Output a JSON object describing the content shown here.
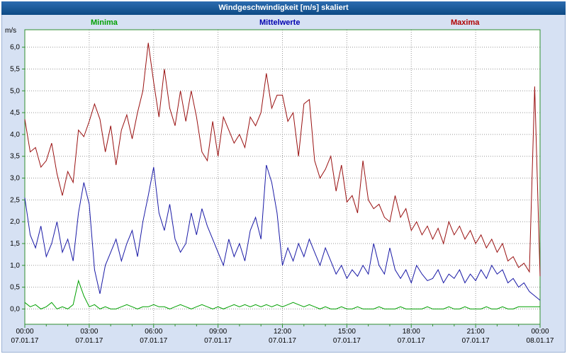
{
  "window": {
    "title": "Windgeschwindigkeit [m/s] skaliert"
  },
  "legend": [
    {
      "label": "Minima",
      "color": "#00a000"
    },
    {
      "label": "Mittelwerte",
      "color": "#0000b0"
    },
    {
      "label": "Maxima",
      "color": "#b00000"
    }
  ],
  "axis": {
    "y_unit": "m/s"
  },
  "colors": {
    "title_top": "#2c6cb0",
    "title_bottom": "#0d4a84",
    "background": "#d6e1f3",
    "plot_frame": "#2f8f2f",
    "grid": "#999999"
  },
  "chart_data": {
    "type": "line",
    "title": "Windgeschwindigkeit [m/s] skaliert",
    "ylabel": "m/s",
    "ylim": [
      -0.35,
      6.4
    ],
    "y_tick_step": 0.5,
    "grid": true,
    "x_start_hour": 0,
    "x_step_minutes": 15,
    "x_tick_hours": [
      0,
      3,
      6,
      9,
      12,
      15,
      18,
      21,
      24
    ],
    "x_tick_labels": [
      "00:00",
      "03:00",
      "06:00",
      "09:00",
      "12:00",
      "15:00",
      "18:00",
      "21:00",
      "00:00"
    ],
    "x_date_labels": [
      "07.01.17",
      "07.01.17",
      "07.01.17",
      "07.01.17",
      "07.01.17",
      "07.01.17",
      "07.01.17",
      "07.01.17",
      "08.01.17"
    ],
    "y_tick_labels": [
      "0,0",
      "0,5",
      "1,0",
      "1,5",
      "2,0",
      "2,5",
      "3,0",
      "3,5",
      "4,0",
      "4,5",
      "5,0",
      "5,5",
      "6,0"
    ],
    "series": [
      {
        "name": "Maxima",
        "color": "#991010",
        "values": [
          4.35,
          3.6,
          3.7,
          3.25,
          3.4,
          3.8,
          3.1,
          2.6,
          3.15,
          2.9,
          4.1,
          3.95,
          4.3,
          4.7,
          4.35,
          3.6,
          4.2,
          3.3,
          4.1,
          4.45,
          3.9,
          4.5,
          5.0,
          6.1,
          5.2,
          4.4,
          5.5,
          4.6,
          4.2,
          5.0,
          4.3,
          5.0,
          4.4,
          3.6,
          3.4,
          4.3,
          3.5,
          4.4,
          4.1,
          3.8,
          4.0,
          3.7,
          4.4,
          4.2,
          4.5,
          5.4,
          4.6,
          4.9,
          4.9,
          4.3,
          4.5,
          3.5,
          4.7,
          4.8,
          3.4,
          3.0,
          3.2,
          3.5,
          2.7,
          3.3,
          2.45,
          2.6,
          2.2,
          3.4,
          2.5,
          2.3,
          2.4,
          2.1,
          2.0,
          2.6,
          2.1,
          2.3,
          1.8,
          2.0,
          1.7,
          1.9,
          1.6,
          1.85,
          1.5,
          2.0,
          1.7,
          1.9,
          1.6,
          1.8,
          1.5,
          1.7,
          1.4,
          1.6,
          1.3,
          1.5,
          1.1,
          1.2,
          0.95,
          1.05,
          0.85,
          5.1,
          0.75
        ]
      },
      {
        "name": "Mittelwerte",
        "color": "#1a1aa6",
        "values": [
          2.55,
          1.7,
          1.4,
          1.9,
          1.2,
          1.5,
          2.0,
          1.3,
          1.6,
          1.1,
          2.2,
          2.9,
          2.4,
          0.9,
          0.35,
          1.0,
          1.3,
          1.6,
          1.1,
          1.5,
          1.8,
          1.2,
          2.0,
          2.6,
          3.25,
          2.2,
          1.8,
          2.4,
          1.6,
          1.3,
          1.5,
          2.2,
          1.7,
          2.3,
          1.9,
          1.6,
          1.3,
          1.0,
          1.6,
          1.2,
          1.5,
          1.1,
          1.8,
          2.1,
          1.6,
          3.3,
          2.9,
          2.2,
          1.0,
          1.4,
          1.1,
          1.5,
          1.2,
          1.6,
          1.3,
          1.0,
          1.4,
          1.1,
          0.8,
          1.0,
          0.7,
          0.9,
          0.75,
          1.0,
          0.8,
          1.5,
          1.0,
          0.8,
          1.4,
          0.9,
          0.7,
          0.9,
          0.6,
          1.0,
          0.8,
          0.65,
          0.7,
          0.9,
          0.6,
          0.8,
          0.7,
          0.9,
          0.6,
          0.8,
          0.65,
          0.9,
          0.7,
          1.0,
          0.8,
          0.9,
          0.6,
          0.7,
          0.5,
          0.6,
          0.4,
          0.3,
          0.2
        ]
      },
      {
        "name": "Minima",
        "color": "#00a000",
        "values": [
          0.15,
          0.05,
          0.1,
          0.0,
          0.05,
          0.15,
          0.0,
          0.05,
          0.0,
          0.1,
          0.65,
          0.3,
          0.05,
          0.1,
          0.0,
          0.05,
          0.0,
          0.0,
          0.05,
          0.1,
          0.05,
          0.0,
          0.05,
          0.05,
          0.1,
          0.05,
          0.05,
          0.0,
          0.05,
          0.1,
          0.05,
          0.0,
          0.05,
          0.1,
          0.05,
          0.0,
          0.05,
          0.0,
          0.05,
          0.1,
          0.05,
          0.1,
          0.05,
          0.1,
          0.05,
          0.1,
          0.05,
          0.1,
          0.05,
          0.1,
          0.15,
          0.1,
          0.05,
          0.1,
          0.05,
          0.0,
          0.05,
          0.0,
          0.0,
          0.05,
          0.0,
          0.0,
          0.05,
          0.0,
          0.0,
          0.0,
          0.05,
          0.0,
          0.0,
          0.0,
          0.05,
          0.0,
          0.0,
          0.0,
          0.0,
          0.05,
          0.0,
          0.0,
          0.0,
          0.05,
          0.0,
          0.0,
          0.05,
          0.0,
          0.0,
          0.0,
          0.05,
          0.0,
          0.0,
          0.05,
          0.0,
          0.0,
          0.05,
          0.05,
          0.05,
          0.05,
          0.05
        ]
      }
    ]
  }
}
